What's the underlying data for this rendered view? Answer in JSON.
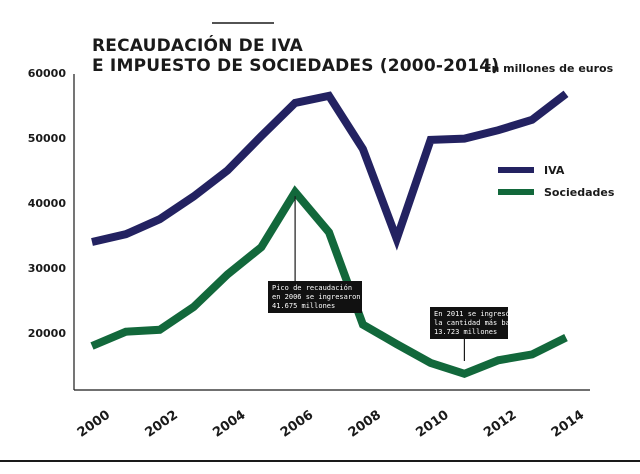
{
  "chart_data": {
    "type": "line",
    "title_lines": [
      "RECAUDACIÓN DE IVA",
      "E IMPUESTO DE SOCIEDADES (2000-2014)"
    ],
    "units_note": "En millones de euros",
    "x": [
      2000,
      2001,
      2002,
      2003,
      2004,
      2005,
      2006,
      2007,
      2008,
      2009,
      2010,
      2011,
      2012,
      2013,
      2014
    ],
    "x_tick_labels": [
      "2000",
      "2002",
      "2004",
      "2006",
      "2008",
      "2010",
      "2012",
      "2014"
    ],
    "y_tick_labels": [
      "20000",
      "30000",
      "40000",
      "50000",
      "60000"
    ],
    "ylim": [
      10000,
      60000
    ],
    "grid": false,
    "legend_position": "right",
    "series": [
      {
        "name": "IVA",
        "color": "#232261",
        "values": [
          34000,
          35200,
          37500,
          41000,
          45000,
          50300,
          55400,
          56500,
          48300,
          34500,
          49700,
          49900,
          51200,
          52800,
          56800
        ]
      },
      {
        "name": "Sociedades",
        "color": "#12683b",
        "values": [
          18000,
          20200,
          20500,
          24000,
          29000,
          33200,
          41675,
          35500,
          21300,
          18300,
          15400,
          13723,
          15800,
          16700,
          19300
        ]
      }
    ],
    "annotations": [
      {
        "x": 2006,
        "lines": [
          "Pico de recaudación",
          "en 2006 se ingresaron",
          "41.675 millones"
        ]
      },
      {
        "x": 2011,
        "lines": [
          "En 2011 se ingresó",
          "la cantidad más baja",
          "13.723 millones"
        ]
      }
    ]
  }
}
